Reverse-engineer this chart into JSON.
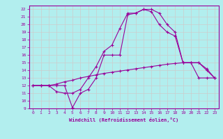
{
  "xlabel": "Windchill (Refroidissement éolien,°C)",
  "background_color": "#b2eeee",
  "grid_color": "#cccccc",
  "line_color": "#990099",
  "xlim": [
    -0.5,
    23.5
  ],
  "ylim": [
    9,
    22.5
  ],
  "xticks": [
    0,
    1,
    2,
    3,
    4,
    5,
    6,
    7,
    8,
    9,
    10,
    11,
    12,
    13,
    14,
    15,
    16,
    17,
    18,
    19,
    20,
    21,
    22,
    23
  ],
  "yticks": [
    9,
    10,
    11,
    12,
    13,
    14,
    15,
    16,
    17,
    18,
    19,
    20,
    21,
    22
  ],
  "line1_x": [
    0,
    1,
    2,
    3,
    4,
    5,
    6,
    7,
    8,
    9,
    10,
    11,
    12,
    13,
    14,
    15,
    16,
    17,
    18,
    19,
    20,
    21,
    22,
    23
  ],
  "line1_y": [
    12,
    12,
    12,
    12,
    12,
    9.1,
    11,
    11.5,
    13,
    16,
    16,
    16,
    21.3,
    21.5,
    22,
    21.7,
    20,
    19,
    18.5,
    15,
    15,
    15,
    14.2,
    13
  ],
  "line2_x": [
    0,
    1,
    2,
    3,
    4,
    5,
    6,
    7,
    8,
    9,
    10,
    11,
    12,
    13,
    14,
    15,
    16,
    17,
    18,
    19,
    20,
    21,
    22,
    23
  ],
  "line2_y": [
    12,
    12,
    12,
    11.2,
    11,
    11,
    11.5,
    13,
    14.5,
    16.5,
    17.3,
    19.5,
    21.5,
    21.5,
    22,
    22,
    21.5,
    20,
    19,
    15,
    15,
    15,
    14,
    13
  ],
  "line3_x": [
    0,
    1,
    2,
    3,
    4,
    5,
    6,
    7,
    8,
    9,
    10,
    11,
    12,
    13,
    14,
    15,
    16,
    17,
    18,
    19,
    20,
    21,
    22,
    23
  ],
  "line3_y": [
    12,
    12,
    12,
    12.2,
    12.5,
    12.7,
    13,
    13.2,
    13.4,
    13.6,
    13.75,
    13.9,
    14.05,
    14.2,
    14.35,
    14.5,
    14.65,
    14.8,
    14.9,
    15,
    15,
    13,
    13,
    13
  ]
}
